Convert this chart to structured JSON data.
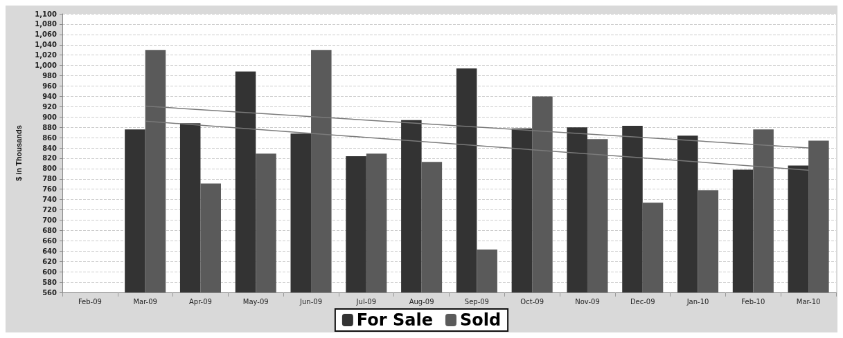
{
  "chart_data": {
    "type": "bar",
    "ylabel": "$ in Thousands",
    "categories": [
      "Feb-09",
      "Mar-09",
      "Apr-09",
      "May-09",
      "Jun-09",
      "Jul-09",
      "Aug-09",
      "Sep-09",
      "Oct-09",
      "Nov-09",
      "Dec-09",
      "Jan-10",
      "Feb-10",
      "Mar-10"
    ],
    "series": [
      {
        "name": "For Sale",
        "color": "#333333",
        "values": [
          null,
          876,
          888,
          988,
          868,
          824,
          894,
          994,
          878,
          880,
          883,
          864,
          798,
          806
        ]
      },
      {
        "name": "Sold",
        "color": "#5a5a5a",
        "values": [
          null,
          1030,
          771,
          829,
          1030,
          829,
          813,
          643,
          940,
          857,
          734,
          758,
          876,
          854
        ]
      },
      {
        "type": "line",
        "color": "#7a7a7a",
        "x": [
          "Mar-09",
          "Mar-10"
        ],
        "values": [
          921,
          840
        ]
      },
      {
        "type": "line",
        "color": "#7a7a7a",
        "x": [
          "Mar-09",
          "Mar-10"
        ],
        "values": [
          892,
          797
        ]
      }
    ],
    "ylim": [
      560,
      1100
    ],
    "yticks": [
      560,
      580,
      600,
      620,
      640,
      660,
      680,
      700,
      720,
      740,
      760,
      780,
      800,
      820,
      840,
      860,
      880,
      900,
      920,
      940,
      960,
      980,
      {
        "value": 1000,
        "label": "1,000"
      },
      {
        "value": 1020,
        "label": "1,020"
      },
      {
        "value": 1040,
        "label": "1,040"
      },
      {
        "value": 1060,
        "label": "1,060"
      },
      {
        "value": 1080,
        "label": "1,080"
      },
      {
        "value": 1100,
        "label": "1,100"
      }
    ],
    "grid": "y",
    "legend": "bottom",
    "marker": "none",
    "line_style": "solid"
  }
}
